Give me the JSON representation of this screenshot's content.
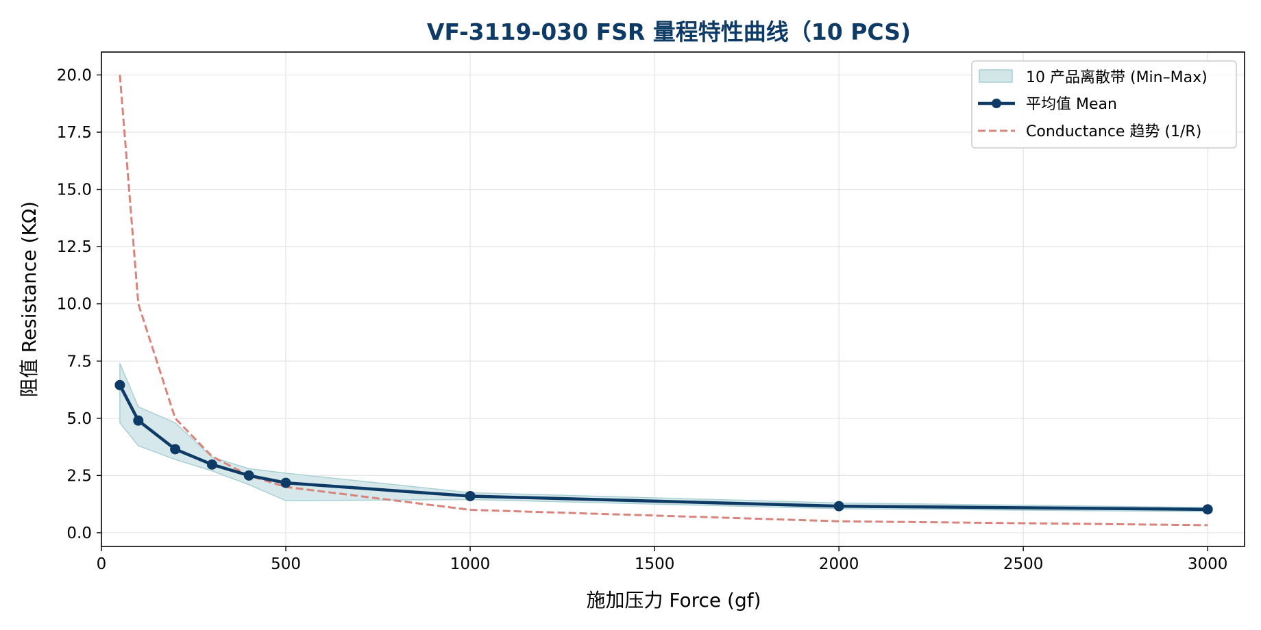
{
  "colors": {
    "mean": "#0e3a66",
    "band_fill": "#d2e6e8",
    "band_edge": "#a9d0d5",
    "trend": "#d9837b",
    "grid": "#e3e3e3",
    "title": "#0e3a66"
  },
  "chart_data": {
    "type": "line",
    "title": "VF-3119-030 FSR 量程特性曲线（10 PCS)",
    "xlabel": "施加压力 Force (gf)",
    "ylabel": "阻值 Resistance (KΩ)",
    "xlim": [
      0,
      3100
    ],
    "ylim": [
      -0.6,
      21
    ],
    "xticks": [
      0,
      500,
      1000,
      1500,
      2000,
      2500,
      3000
    ],
    "xtick_labels": [
      "0",
      "500",
      "1000",
      "1500",
      "2000",
      "2500",
      "3000"
    ],
    "yticks": [
      0,
      2.5,
      5,
      7.5,
      10,
      12.5,
      15,
      17.5,
      20
    ],
    "ytick_labels": [
      "0.0",
      "2.5",
      "5.0",
      "7.5",
      "10.0",
      "12.5",
      "15.0",
      "17.5",
      "20.0"
    ],
    "grid": true,
    "legend_position": "top-right",
    "x": [
      50,
      100,
      200,
      300,
      400,
      500,
      1000,
      2000,
      3000
    ],
    "series": [
      {
        "name": "10 产品离散带 (Min–Max)",
        "kind": "band",
        "min": [
          4.8,
          3.8,
          3.2,
          2.7,
          2.1,
          1.4,
          1.45,
          1.05,
          0.92
        ],
        "max": [
          7.4,
          5.5,
          4.8,
          3.3,
          2.8,
          2.6,
          1.75,
          1.3,
          1.1
        ]
      },
      {
        "name": "平均值 Mean",
        "kind": "line-markers",
        "values": [
          6.45,
          4.9,
          3.65,
          2.98,
          2.5,
          2.18,
          1.6,
          1.16,
          1.02
        ]
      },
      {
        "name": "Conductance 趋势 (1/R)",
        "kind": "dashed-line",
        "values": [
          20,
          10,
          5,
          3.33,
          2.5,
          2,
          1,
          0.5,
          0.33
        ]
      }
    ]
  }
}
